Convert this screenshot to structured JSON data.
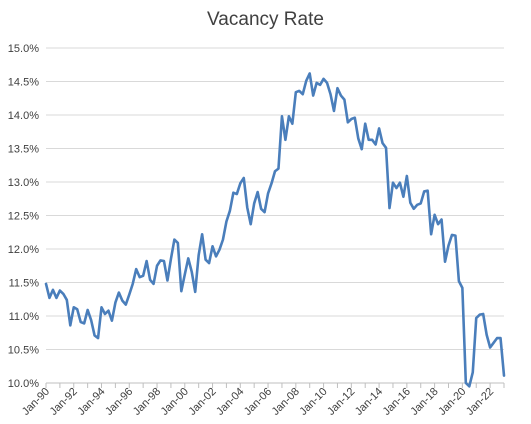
{
  "chart_data": {
    "type": "line",
    "title": "Vacancy Rate",
    "xlabel": "",
    "ylabel": "",
    "ylim": [
      0.1,
      0.15
    ],
    "y_ticks": [
      "10.0%",
      "10.5%",
      "11.0%",
      "11.5%",
      "12.0%",
      "12.5%",
      "13.0%",
      "13.5%",
      "14.0%",
      "14.5%",
      "15.0%"
    ],
    "x_ticks": [
      "Jan-90",
      "Jan-92",
      "Jan-94",
      "Jan-96",
      "Jan-98",
      "Jan-00",
      "Jan-02",
      "Jan-04",
      "Jan-06",
      "Jan-08",
      "Jan-10",
      "Jan-12",
      "Jan-14",
      "Jan-16",
      "Jan-18",
      "Jan-20",
      "Jan-22"
    ],
    "x_first": "Jan-90",
    "grid": true,
    "legend": "none",
    "line_color": "#4a7ebb",
    "series": [
      {
        "values": [
          0.1148,
          0.1127,
          0.1139,
          0.1127,
          0.1138,
          0.1133,
          0.1124,
          0.1086,
          0.1113,
          0.111,
          0.1091,
          0.1089,
          0.1109,
          0.1094,
          0.1071,
          0.1067,
          0.1113,
          0.1103,
          0.1108,
          0.1093,
          0.112,
          0.1135,
          0.1123,
          0.1117,
          0.1132,
          0.1148,
          0.117,
          0.1158,
          0.116,
          0.1182,
          0.1154,
          0.1148,
          0.1175,
          0.1183,
          0.1182,
          0.1153,
          0.1185,
          0.1214,
          0.1209,
          0.1137,
          0.1162,
          0.1186,
          0.1166,
          0.1136,
          0.1191,
          0.1222,
          0.1184,
          0.1179,
          0.1204,
          0.1189,
          0.1199,
          0.1214,
          0.1241,
          0.1257,
          0.1284,
          0.1282,
          0.1298,
          0.1306,
          0.1262,
          0.1237,
          0.1268,
          0.1285,
          0.126,
          0.1255,
          0.1283,
          0.1298,
          0.1316,
          0.132,
          0.1398,
          0.1363,
          0.1398,
          0.1387,
          0.1434,
          0.1436,
          0.1431,
          0.1451,
          0.1462,
          0.1429,
          0.1448,
          0.1445,
          0.1454,
          0.1448,
          0.1431,
          0.1406,
          0.144,
          0.1429,
          0.1423,
          0.1389,
          0.1394,
          0.1396,
          0.1365,
          0.1349,
          0.1387,
          0.1363,
          0.1363,
          0.1356,
          0.138,
          0.1358,
          0.1351,
          0.1261,
          0.1299,
          0.1291,
          0.1299,
          0.1278,
          0.1309,
          0.1269,
          0.126,
          0.1266,
          0.1268,
          0.1286,
          0.1287,
          0.1222,
          0.1251,
          0.1237,
          0.1244,
          0.1181,
          0.1205,
          0.1221,
          0.122,
          0.1152,
          0.1142,
          0.1,
          0.0995,
          0.1016,
          0.1097,
          0.1102,
          0.1103,
          0.1072,
          0.1053,
          0.106,
          0.1067,
          0.1067,
          0.1011
        ]
      }
    ]
  }
}
